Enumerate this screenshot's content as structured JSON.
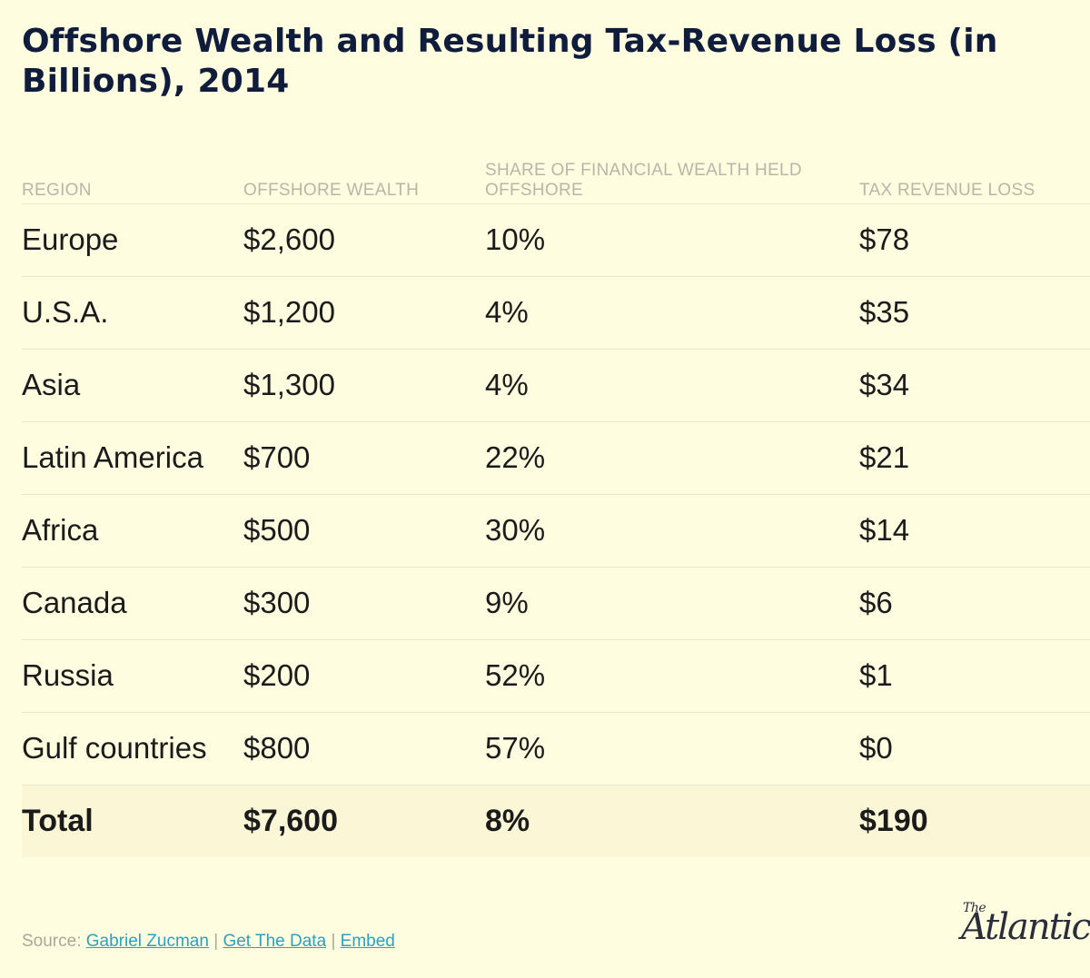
{
  "title": "Offshore Wealth and Resulting Tax-Revenue Loss (in Billions), 2014",
  "chart_data": {
    "type": "table",
    "title": "Offshore Wealth and Resulting Tax-Revenue Loss (in Billions), 2014",
    "columns": [
      "REGION",
      "OFFSHORE WEALTH",
      "SHARE OF FINANCIAL WEALTH HELD OFFSHORE",
      "TAX REVENUE LOSS"
    ],
    "rows": [
      {
        "region": "Europe",
        "wealth": "$2,600",
        "share": "10%",
        "loss": "$78"
      },
      {
        "region": "U.S.A.",
        "wealth": "$1,200",
        "share": "4%",
        "loss": "$35"
      },
      {
        "region": "Asia",
        "wealth": "$1,300",
        "share": "4%",
        "loss": "$34"
      },
      {
        "region": "Latin America",
        "wealth": "$700",
        "share": "22%",
        "loss": "$21"
      },
      {
        "region": "Africa",
        "wealth": "$500",
        "share": "30%",
        "loss": "$14"
      },
      {
        "region": "Canada",
        "wealth": "$300",
        "share": "9%",
        "loss": "$6"
      },
      {
        "region": "Russia",
        "wealth": "$200",
        "share": "52%",
        "loss": "$1"
      },
      {
        "region": "Gulf countries",
        "wealth": "$800",
        "share": "57%",
        "loss": "$0"
      }
    ],
    "total": {
      "region": "Total",
      "wealth": "$7,600",
      "share": "8%",
      "loss": "$190"
    }
  },
  "source": {
    "label": "Source:",
    "author_link": "Gabriel Zucman",
    "separator": "|",
    "data_link": "Get The Data",
    "embed_link": "Embed"
  },
  "logo": {
    "the": "The",
    "name": "Atlantic"
  }
}
